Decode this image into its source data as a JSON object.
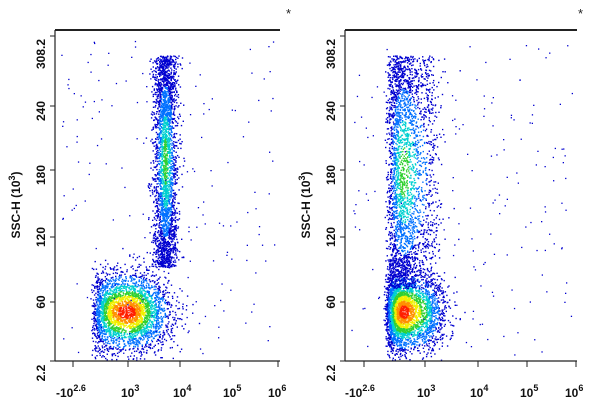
{
  "chart_data": [
    {
      "type": "scatter",
      "title": "",
      "ylabel": "SSC-H (10^3)",
      "xlabel": "",
      "x_scale": "log",
      "x_tick_labels": [
        "-10^2.6",
        "10^3",
        "10^4",
        "10^5",
        "10^6"
      ],
      "y_tick_labels": [
        "2.2",
        "60",
        "120",
        "180",
        "240",
        "308.2"
      ],
      "xlim": [
        -398,
        1000000
      ],
      "ylim": [
        2.2,
        308.2
      ],
      "corner_mark": "*",
      "colors": [
        "#0000d0",
        "#0070ff",
        "#00d0d0",
        "#30d030",
        "#f0f000",
        "#ff9000",
        "#ff2000"
      ],
      "populations": [
        {
          "x_center": 1000,
          "y_center": 48,
          "x_spread_decades": 0.4,
          "y_spread": 18,
          "density": "high"
        },
        {
          "x_center": 5500,
          "y_center": 190,
          "x_spread_decades": 0.12,
          "y_spread": 100,
          "density": "medium"
        }
      ]
    },
    {
      "type": "scatter",
      "title": "",
      "ylabel": "SSC-H (10^3)",
      "xlabel": "",
      "x_scale": "log",
      "x_tick_labels": [
        "-10^2.6",
        "10^3",
        "10^4",
        "10^5",
        "10^6"
      ],
      "y_tick_labels": [
        "2.2",
        "60",
        "120",
        "180",
        "240",
        "308.2"
      ],
      "xlim": [
        -398,
        1000000
      ],
      "ylim": [
        2.2,
        308.2
      ],
      "corner_mark": "*",
      "colors": [
        "#0000d0",
        "#0070ff",
        "#00d0d0",
        "#30d030",
        "#f0f000",
        "#ff9000",
        "#ff2000"
      ],
      "populations": [
        {
          "x_center": 500,
          "y_center": 48,
          "x_spread_decades": 0.3,
          "y_spread": 18,
          "density": "high"
        },
        {
          "x_center": 500,
          "y_center": 180,
          "x_spread_decades": 0.25,
          "y_spread": 110,
          "density": "medium"
        }
      ]
    }
  ]
}
